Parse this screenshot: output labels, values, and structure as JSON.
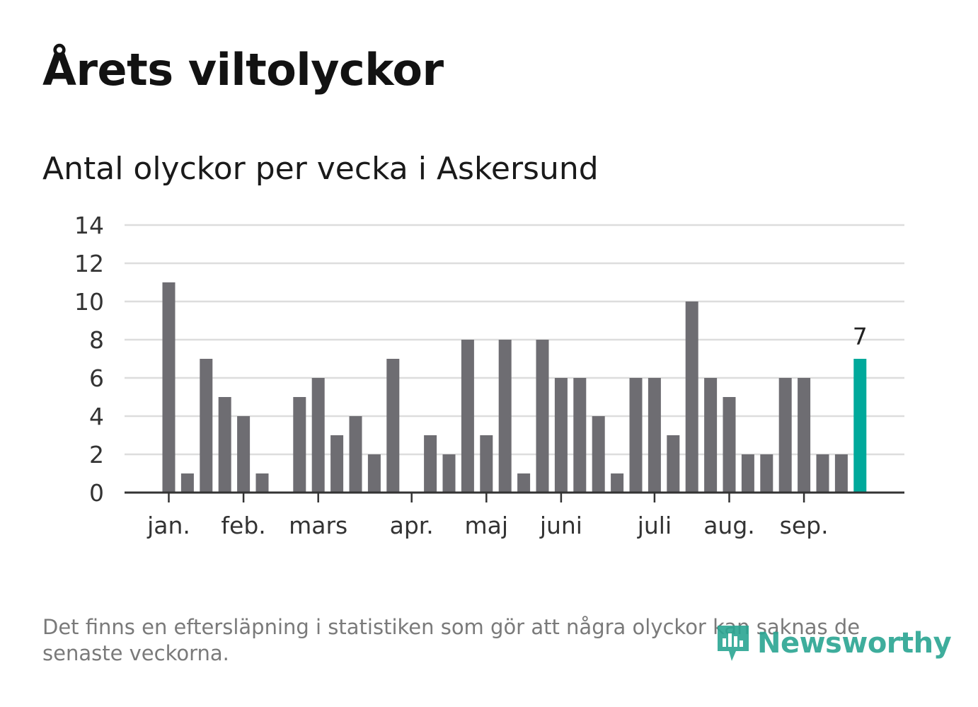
{
  "title": "Årets viltolyckor",
  "subtitle": "Antal olyckor per vecka i Askersund",
  "footnote": "Det finns en eftersläpning i statistiken som gör att några olyckor kan saknas de senaste veckorna.",
  "logo": {
    "text": "Newsworthy",
    "icon": "newsworthy-chart-icon"
  },
  "colors": {
    "bar": "#6e6d72",
    "highlight": "#00a99b",
    "grid": "#dddddd",
    "axis": "#333333",
    "brand": "#2aa592"
  },
  "chart_data": {
    "type": "bar",
    "title": "Antal olyckor per vecka i Askersund",
    "xlabel": "",
    "ylabel": "",
    "ylim": [
      0,
      14
    ],
    "yticks": [
      0,
      2,
      4,
      6,
      8,
      10,
      12,
      14
    ],
    "grid": true,
    "weeks": [
      1,
      2,
      3,
      4,
      5,
      6,
      7,
      8,
      9,
      10,
      11,
      12,
      13,
      14,
      15,
      16,
      17,
      18,
      19,
      20,
      21,
      22,
      23,
      24,
      25,
      26,
      27,
      28,
      29,
      30,
      31,
      32,
      33,
      34,
      35,
      36,
      37,
      38
    ],
    "values": [
      11,
      1,
      7,
      5,
      4,
      1,
      0,
      5,
      6,
      3,
      4,
      2,
      7,
      0,
      3,
      2,
      8,
      3,
      8,
      1,
      8,
      6,
      6,
      4,
      1,
      6,
      6,
      3,
      10,
      6,
      5,
      2,
      2,
      6,
      6,
      2,
      2,
      7
    ],
    "highlight_index": 37,
    "highlight_label": "7",
    "month_ticks": [
      {
        "label": "jan.",
        "week": 1
      },
      {
        "label": "feb.",
        "week": 5
      },
      {
        "label": "mars",
        "week": 9
      },
      {
        "label": "apr.",
        "week": 14
      },
      {
        "label": "maj",
        "week": 18
      },
      {
        "label": "juni",
        "week": 22
      },
      {
        "label": "juli",
        "week": 27
      },
      {
        "label": "aug.",
        "week": 31
      },
      {
        "label": "sep.",
        "week": 35
      }
    ]
  }
}
